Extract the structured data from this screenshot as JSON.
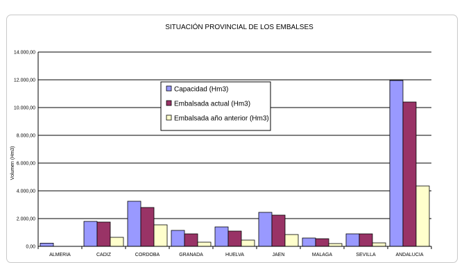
{
  "chart_data": {
    "type": "bar",
    "title": "SITUACIÓN PROVINCIAL DE LOS EMBALSES",
    "xlabel": "",
    "ylabel": "Volumen (Hm3)",
    "ylim": [
      0,
      14000
    ],
    "yticks": [
      "0,00",
      "2.000,00",
      "4.000,00",
      "6.000,00",
      "8.000,00",
      "10.000,00",
      "12.000,00",
      "14.000,00"
    ],
    "grid": true,
    "legend_position": "upper-center",
    "categories": [
      "ALMERIA",
      "CADIZ",
      "CORDOBA",
      "GRANADA",
      "HUELVA",
      "JAEN",
      "MALAGA",
      "SEVILLA",
      "ANDALUCIA"
    ],
    "series": [
      {
        "name": "Capacidad (Hm3)",
        "color": "#9999ff",
        "values": [
          230,
          1800,
          3250,
          1150,
          1400,
          2450,
          600,
          900,
          11950
        ]
      },
      {
        "name": "Embalsada actual (Hm3)",
        "color": "#993366",
        "values": [
          0,
          1750,
          2800,
          900,
          1100,
          2250,
          550,
          900,
          10400
        ]
      },
      {
        "name": "Embalsada año anterior (Hm3)",
        "color": "#ffffcc",
        "values": [
          0,
          650,
          1550,
          300,
          450,
          850,
          200,
          250,
          4350
        ]
      }
    ]
  }
}
